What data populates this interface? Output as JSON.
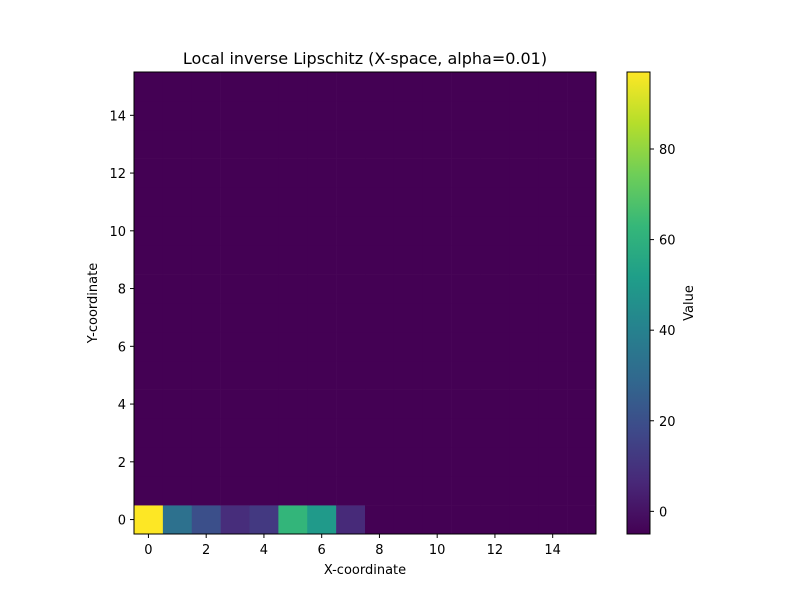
{
  "chart_data": {
    "type": "heatmap",
    "title": "Local inverse Lipschitz (X-space, alpha=0.01)",
    "xlabel": "X-coordinate",
    "ylabel": "Y-coordinate",
    "colorbar_label": "Value",
    "colormap": "viridis",
    "grid": false,
    "nx": 16,
    "ny": 16,
    "xlim": [
      -0.5,
      15.5
    ],
    "ylim": [
      -0.5,
      15.5
    ],
    "x_ticks": [
      0,
      2,
      4,
      6,
      8,
      10,
      12,
      14
    ],
    "y_ticks": [
      0,
      2,
      4,
      6,
      8,
      10,
      12,
      14
    ],
    "color_range": [
      -5,
      97
    ],
    "colorbar_ticks": [
      0,
      20,
      40,
      60,
      80
    ],
    "background_value": -5,
    "nonzero_cells": [
      {
        "x": 0,
        "y": 0,
        "value": 97
      },
      {
        "x": 1,
        "y": 0,
        "value": 33
      },
      {
        "x": 2,
        "y": 0,
        "value": 20
      },
      {
        "x": 3,
        "y": 0,
        "value": 8
      },
      {
        "x": 4,
        "y": 0,
        "value": 12
      },
      {
        "x": 5,
        "y": 0,
        "value": 62
      },
      {
        "x": 6,
        "y": 0,
        "value": 50
      },
      {
        "x": 7,
        "y": 0,
        "value": 7
      }
    ]
  }
}
